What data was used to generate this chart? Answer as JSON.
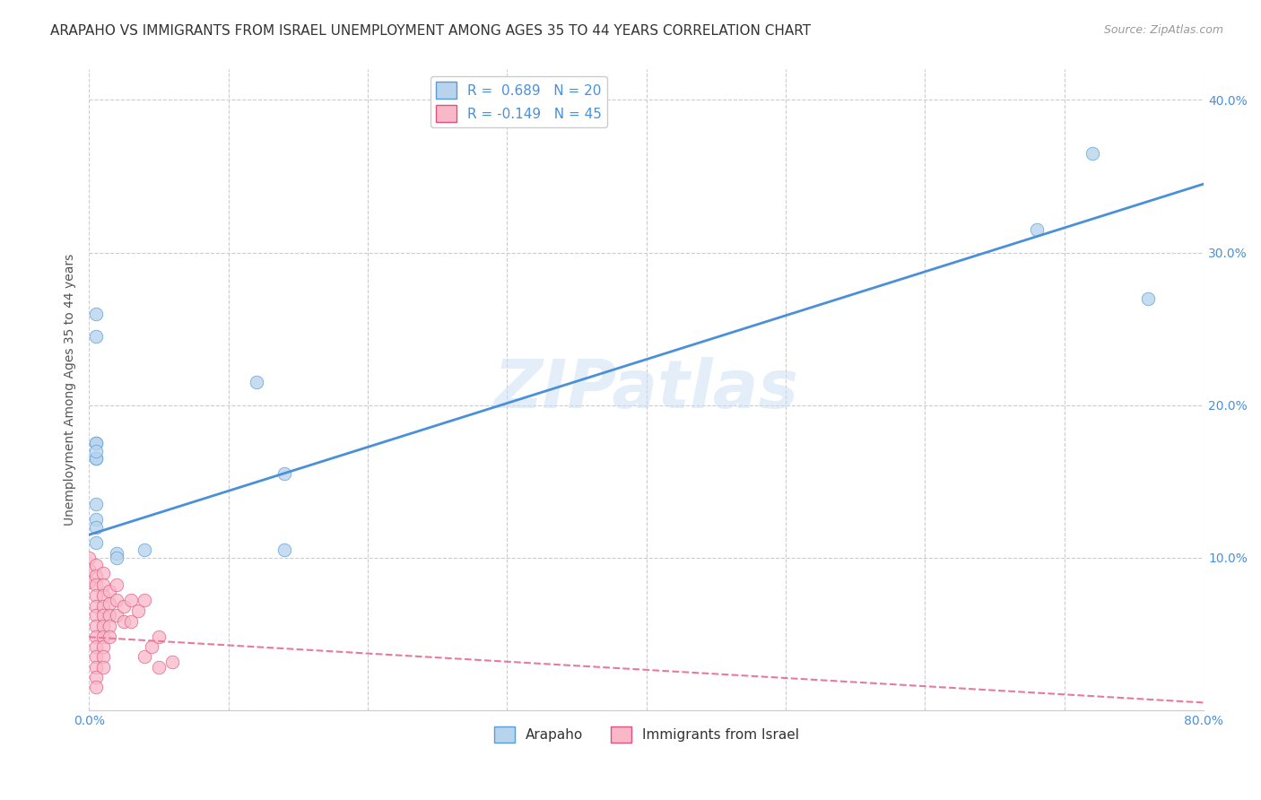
{
  "title": "ARAPAHO VS IMMIGRANTS FROM ISRAEL UNEMPLOYMENT AMONG AGES 35 TO 44 YEARS CORRELATION CHART",
  "source": "Source: ZipAtlas.com",
  "ylabel": "Unemployment Among Ages 35 to 44 years",
  "xlim": [
    0.0,
    0.8
  ],
  "ylim": [
    0.0,
    0.42
  ],
  "xticks": [
    0.0,
    0.1,
    0.2,
    0.3,
    0.4,
    0.5,
    0.6,
    0.7,
    0.8
  ],
  "xticklabels": [
    "0.0%",
    "",
    "",
    "",
    "",
    "",
    "",
    "",
    "80.0%"
  ],
  "yticks": [
    0.0,
    0.1,
    0.2,
    0.3,
    0.4
  ],
  "yticklabels": [
    "",
    "10.0%",
    "20.0%",
    "30.0%",
    "40.0%"
  ],
  "arapaho_fill": "#b8d4ed",
  "arapaho_edge": "#5b9bd5",
  "israel_fill": "#f9b8c8",
  "israel_edge": "#e05080",
  "arapaho_line_color": "#4a90d9",
  "israel_line_color": "#e87a9a",
  "R_arapaho": 0.689,
  "N_arapaho": 20,
  "R_israel": -0.149,
  "N_israel": 45,
  "watermark": "ZIPatlas",
  "arapaho_line_x0": 0.0,
  "arapaho_line_y0": 0.115,
  "arapaho_line_x1": 0.8,
  "arapaho_line_y1": 0.345,
  "israel_line_x0": 0.0,
  "israel_line_y0": 0.048,
  "israel_line_x1": 0.8,
  "israel_line_y1": 0.005,
  "arapaho_points": [
    [
      0.005,
      0.26
    ],
    [
      0.005,
      0.245
    ],
    [
      0.005,
      0.175
    ],
    [
      0.005,
      0.165
    ],
    [
      0.005,
      0.175
    ],
    [
      0.005,
      0.165
    ],
    [
      0.005,
      0.135
    ],
    [
      0.005,
      0.125
    ],
    [
      0.005,
      0.17
    ],
    [
      0.12,
      0.215
    ],
    [
      0.14,
      0.155
    ],
    [
      0.04,
      0.105
    ],
    [
      0.005,
      0.12
    ],
    [
      0.005,
      0.11
    ],
    [
      0.02,
      0.103
    ],
    [
      0.02,
      0.1
    ],
    [
      0.14,
      0.105
    ],
    [
      0.68,
      0.315
    ],
    [
      0.72,
      0.365
    ],
    [
      0.76,
      0.27
    ]
  ],
  "israel_points": [
    [
      0.0,
      0.1
    ],
    [
      0.0,
      0.092
    ],
    [
      0.0,
      0.084
    ],
    [
      0.005,
      0.095
    ],
    [
      0.005,
      0.088
    ],
    [
      0.005,
      0.082
    ],
    [
      0.005,
      0.075
    ],
    [
      0.005,
      0.068
    ],
    [
      0.005,
      0.062
    ],
    [
      0.005,
      0.055
    ],
    [
      0.005,
      0.048
    ],
    [
      0.005,
      0.042
    ],
    [
      0.005,
      0.035
    ],
    [
      0.005,
      0.028
    ],
    [
      0.005,
      0.022
    ],
    [
      0.005,
      0.015
    ],
    [
      0.01,
      0.09
    ],
    [
      0.01,
      0.082
    ],
    [
      0.01,
      0.075
    ],
    [
      0.01,
      0.068
    ],
    [
      0.01,
      0.062
    ],
    [
      0.01,
      0.055
    ],
    [
      0.01,
      0.048
    ],
    [
      0.01,
      0.042
    ],
    [
      0.01,
      0.035
    ],
    [
      0.01,
      0.028
    ],
    [
      0.015,
      0.078
    ],
    [
      0.015,
      0.07
    ],
    [
      0.015,
      0.062
    ],
    [
      0.015,
      0.055
    ],
    [
      0.015,
      0.048
    ],
    [
      0.02,
      0.082
    ],
    [
      0.02,
      0.072
    ],
    [
      0.02,
      0.062
    ],
    [
      0.025,
      0.068
    ],
    [
      0.025,
      0.058
    ],
    [
      0.03,
      0.072
    ],
    [
      0.03,
      0.058
    ],
    [
      0.035,
      0.065
    ],
    [
      0.04,
      0.072
    ],
    [
      0.04,
      0.035
    ],
    [
      0.045,
      0.042
    ],
    [
      0.05,
      0.048
    ],
    [
      0.05,
      0.028
    ],
    [
      0.06,
      0.032
    ]
  ],
  "grid_color": "#cccccc",
  "background_color": "#ffffff",
  "title_fontsize": 11,
  "axis_label_fontsize": 10,
  "tick_fontsize": 10,
  "legend_fontsize": 11
}
